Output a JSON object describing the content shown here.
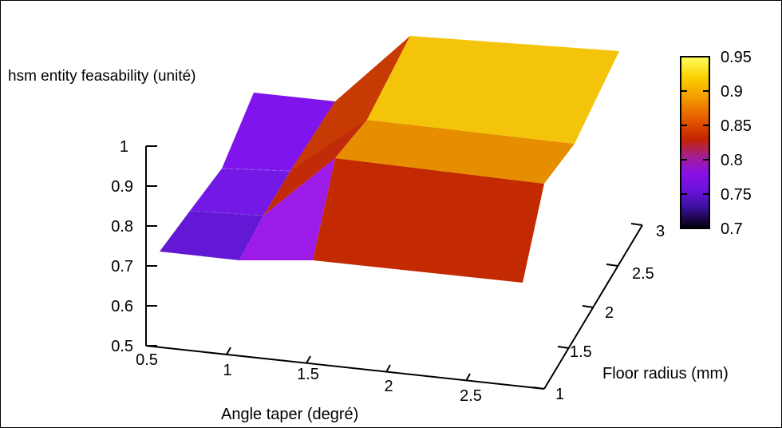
{
  "chart_data": {
    "type": "surface",
    "zlabel": "hsm entity feasability (unité)",
    "xlabel": "Angle taper (degré)",
    "ylabel": "Floor radius (mm)",
    "x_ticks": [
      "0.5",
      "1",
      "1.5",
      "2",
      "2.5"
    ],
    "y_ticks": [
      "1",
      "1.5",
      "2",
      "2.5",
      "3"
    ],
    "z_ticks": [
      "0.5",
      "0.6",
      "0.7",
      "0.8",
      "0.9",
      "1"
    ],
    "xlim": [
      0.5,
      3
    ],
    "ylim": [
      1,
      3
    ],
    "zlim": [
      0.5,
      1
    ],
    "surface": {
      "x": [
        0.5,
        1.5,
        2.5
      ],
      "y": [
        1,
        2,
        3
      ],
      "z": [
        [
          0.75,
          0.8,
          0.9
        ],
        [
          0.75,
          0.8,
          0.9
        ],
        [
          0.75,
          0.85,
          0.95
        ]
      ]
    },
    "colorbar": {
      "ticks": [
        "0.7",
        "0.75",
        "0.8",
        "0.85",
        "0.9",
        "0.95"
      ],
      "range": [
        0.7,
        0.95
      ],
      "palette": [
        "#000000",
        "#3a0f9c",
        "#8a10e8",
        "#a4208f",
        "#c62400",
        "#e65c00",
        "#f39a00",
        "#fbd000",
        "#ffff60"
      ]
    }
  }
}
